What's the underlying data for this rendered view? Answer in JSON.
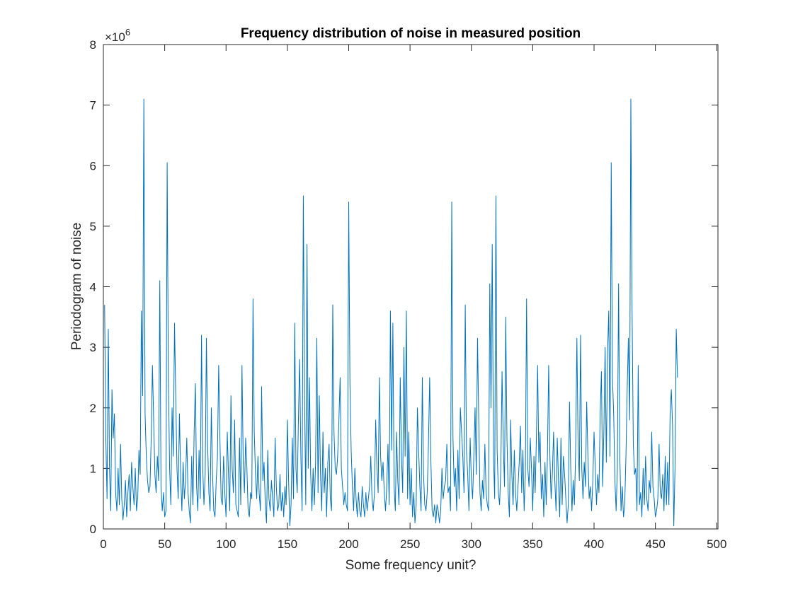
{
  "chart_data": {
    "type": "line",
    "title": "Frequency distribution of noise in measured position",
    "xlabel": "Some frequency unit?",
    "ylabel": "Periodogram of noise",
    "y_exponent_label": "×10",
    "y_exponent_power": "6",
    "xlim": [
      0,
      501
    ],
    "ylim": [
      0,
      8
    ],
    "y_scale_factor": 1000000,
    "x_ticks": [
      0,
      50,
      100,
      150,
      200,
      250,
      300,
      350,
      400,
      450,
      500
    ],
    "x_tick_labels": [
      "0",
      "50",
      "100",
      "150",
      "200",
      "250",
      "300",
      "350",
      "400",
      "450",
      "500"
    ],
    "y_ticks": [
      0,
      1,
      2,
      3,
      4,
      5,
      6,
      7,
      8
    ],
    "y_tick_labels": [
      "0",
      "1",
      "2",
      "3",
      "4",
      "5",
      "6",
      "7",
      "8"
    ],
    "grid": false,
    "line_color": "#0072BD",
    "series": [
      {
        "x_start": 1,
        "x_step": 1,
        "values": [
          3.7,
          1.5,
          0.5,
          3.3,
          1.0,
          0.3,
          2.3,
          1.5,
          1.9,
          0.6,
          0.3,
          1.0,
          0.4,
          1.4,
          0.5,
          0.15,
          0.4,
          0.8,
          0.2,
          0.6,
          0.9,
          0.3,
          1.1,
          0.7,
          0.4,
          1.0,
          0.3,
          0.5,
          1.3,
          0.9,
          3.6,
          2.2,
          7.1,
          1.9,
          1.2,
          0.8,
          0.6,
          0.7,
          1.5,
          2.7,
          1.8,
          0.9,
          0.6,
          1.2,
          0.8,
          4.1,
          0.7,
          0.3,
          0.6,
          0.2,
          0.3,
          6.05,
          2.5,
          1.0,
          0.4,
          2.0,
          1.2,
          3.4,
          2.2,
          1.0,
          0.5,
          1.9,
          0.9,
          0.3,
          1.1,
          0.5,
          0.8,
          1.5,
          0.6,
          0.3,
          0.1,
          1.2,
          0.4,
          1.6,
          2.4,
          0.7,
          0.3,
          1.3,
          0.5,
          3.2,
          1.0,
          0.4,
          0.9,
          3.15,
          1.4,
          0.6,
          0.3,
          2.0,
          0.9,
          0.3,
          0.2,
          0.8,
          1.2,
          2.7,
          1.5,
          0.5,
          0.4,
          1.2,
          0.6,
          0.2,
          1.6,
          0.9,
          0.3,
          2.2,
          1.0,
          0.6,
          1.8,
          0.4,
          0.3,
          0.2,
          1.5,
          0.4,
          2.7,
          1.1,
          0.6,
          1.5,
          1.0,
          0.3,
          0.2,
          0.6,
          0.5,
          3.8,
          1.6,
          0.9,
          0.5,
          1.2,
          0.6,
          0.3,
          2.35,
          0.8,
          1.1,
          0.4,
          0.1,
          1.3,
          0.5,
          0.3,
          0.8,
          0.5,
          0.2,
          1.5,
          0.7,
          0.3,
          0.4,
          0.9,
          0.3,
          0.6,
          0.2,
          0.7,
          0.4,
          1.8,
          0.8,
          0.05,
          0.4,
          1.5,
          0.5,
          3.4,
          1.0,
          0.6,
          1.8,
          2.8,
          1.2,
          0.3,
          5.5,
          2.2,
          0.4,
          4.7,
          1.0,
          2.5,
          0.9,
          0.3,
          1.0,
          0.4,
          1.1,
          3.15,
          0.6,
          2.2,
          0.9,
          0.3,
          1.6,
          0.6,
          1.0,
          0.2,
          1.1,
          1.4,
          0.5,
          0.3,
          3.7,
          1.6,
          1.0,
          0.9,
          1.2,
          1.8,
          2.5,
          1.0,
          0.7,
          0.4,
          0.6,
          0.4,
          0.3,
          5.4,
          2.4,
          1.3,
          0.7,
          0.3,
          1.0,
          0.5,
          0.2,
          0.6,
          0.3,
          0.2,
          0.7,
          0.4,
          0.2,
          0.6,
          0.3,
          0.5,
          0.7,
          1.2,
          0.5,
          0.3,
          0.6,
          1.8,
          1.0,
          0.6,
          2.5,
          1.2,
          0.8,
          1.1,
          0.6,
          0.3,
          0.7,
          1.4,
          0.4,
          3.6,
          1.3,
          3.4,
          0.7,
          0.3,
          1.6,
          0.8,
          0.4,
          2.5,
          1.2,
          0.6,
          3.0,
          1.2,
          3.6,
          0.5,
          1.6,
          0.4,
          1.0,
          0.2,
          0.6,
          0.1,
          0.4,
          2.0,
          1.3,
          0.7,
          0.3,
          2.5,
          0.9,
          0.4,
          0.3,
          0.6,
          1.4,
          2.5,
          1.1,
          0.3,
          0.2,
          0.4,
          0.1,
          0.4,
          0.3,
          0.1,
          0.3,
          1.0,
          0.5,
          0.7,
          0.8,
          1.4,
          0.6,
          0.7,
          0.3,
          5.4,
          1.5,
          0.7,
          1.0,
          0.3,
          1.3,
          0.5,
          2.0,
          1.6,
          1.2,
          0.6,
          3.7,
          1.3,
          0.9,
          0.3,
          1.5,
          0.8,
          0.5,
          1.2,
          2.0,
          0.9,
          3.15,
          1.8,
          0.6,
          0.3,
          0.8,
          0.5,
          1.4,
          0.6,
          0.4,
          0.3,
          4.05,
          2.0,
          4.7,
          1.2,
          0.5,
          5.5,
          1.3,
          0.6,
          0.4,
          1.0,
          2.6,
          1.4,
          0.7,
          3.5,
          1.5,
          0.6,
          0.2,
          1.8,
          0.9,
          0.4,
          1.3,
          0.6,
          0.3,
          0.7,
          1.1,
          1.7,
          0.6,
          1.3,
          0.3,
          0.9,
          3.8,
          1.0,
          0.7,
          1.5,
          1.0,
          0.3,
          1.2,
          0.6,
          1.5,
          2.7,
          1.1,
          1.6,
          0.5,
          0.9,
          0.2,
          1.1,
          0.4,
          1.2,
          2.7,
          1.2,
          0.5,
          0.9,
          1.6,
          0.8,
          0.3,
          1.5,
          0.8,
          0.2,
          1.5,
          0.4,
          1.2,
          0.9,
          0.5,
          0.1,
          0.4,
          2.1,
          1.0,
          0.3,
          0.8,
          0.4,
          1.3,
          3.15,
          1.4,
          0.8,
          3.2,
          1.0,
          0.5,
          1.1,
          0.7,
          2.1,
          1.2,
          0.5,
          0.7,
          0.3,
          0.8,
          1.6,
          1.0,
          0.4,
          0.9,
          0.6,
          1.9,
          2.6,
          0.7,
          1.6,
          3.0,
          1.1,
          2.9,
          3.6,
          1.2,
          6.05,
          2.5,
          1.9,
          0.8,
          0.3,
          1.0,
          4.05,
          1.2,
          0.3,
          0.7,
          0.2,
          0.4,
          1.2,
          2.3,
          3.15,
          1.8,
          7.1,
          3.6,
          1.4,
          0.9,
          1.0,
          0.3,
          2.7,
          0.4,
          0.6,
          0.2,
          1.0,
          0.4,
          1.2,
          0.5,
          0.3,
          0.8,
          0.6,
          1.6,
          0.7,
          0.5,
          0.2,
          0.3,
          0.5,
          1.4,
          0.6,
          0.5,
          0.9,
          0.3,
          1.2,
          0.4,
          1.1,
          0.4,
          1.9,
          2.3,
          1.7,
          0.05,
          1.0,
          3.3,
          2.5
        ]
      }
    ]
  }
}
